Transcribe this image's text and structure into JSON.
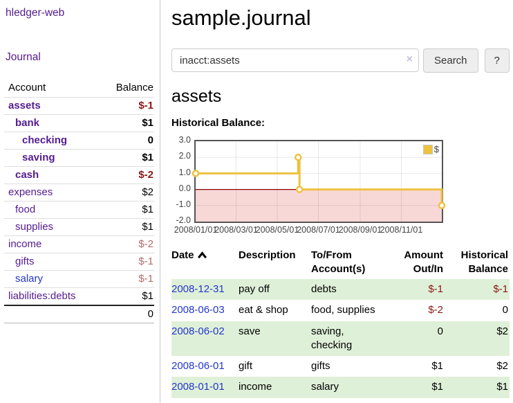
{
  "colors": {
    "link_purple": "#541b8f",
    "link_blue": "#2336cc",
    "negative_strong": "#8b1616",
    "negative_soft": "#b36b6b",
    "row_shade_green": "#dff0d8",
    "accent_yellow": "#edc240"
  },
  "app": {
    "name": "hledger-web"
  },
  "sidebar": {
    "journal_link": "Journal",
    "accounts_table": {
      "account_header": "Account",
      "balance_header": "Balance",
      "rows": [
        {
          "name": "assets",
          "balance": "$-1",
          "indent": 1,
          "bold": true,
          "balance_class": "neg-strong",
          "link_class": ""
        },
        {
          "name": "bank",
          "balance": "$1",
          "indent": 2,
          "bold": true,
          "balance_class": "",
          "link_class": ""
        },
        {
          "name": "checking",
          "balance": "0",
          "indent": 3,
          "bold": true,
          "balance_class": "",
          "link_class": ""
        },
        {
          "name": "saving",
          "balance": "$1",
          "indent": 3,
          "bold": true,
          "balance_class": "",
          "link_class": ""
        },
        {
          "name": "cash",
          "balance": "$-2",
          "indent": 2,
          "bold": true,
          "balance_class": "neg-strong",
          "link_class": ""
        },
        {
          "name": "expenses",
          "balance": "$2",
          "indent": 1,
          "bold": false,
          "balance_class": "",
          "link_class": ""
        },
        {
          "name": "food",
          "balance": "$1",
          "indent": 2,
          "bold": false,
          "balance_class": "",
          "link_class": ""
        },
        {
          "name": "supplies",
          "balance": "$1",
          "indent": 2,
          "bold": false,
          "balance_class": "",
          "link_class": ""
        },
        {
          "name": "income",
          "balance": "$-2",
          "indent": 1,
          "bold": false,
          "balance_class": "neg-soft",
          "link_class": ""
        },
        {
          "name": "gifts",
          "balance": "$-1",
          "indent": 2,
          "bold": false,
          "balance_class": "neg-soft",
          "link_class": ""
        },
        {
          "name": "salary",
          "balance": "$-1",
          "indent": 2,
          "bold": false,
          "balance_class": "neg-soft",
          "link_class": "blue"
        },
        {
          "name": "liabilities:debts",
          "balance": "$1",
          "indent": 1,
          "bold": false,
          "balance_class": "",
          "link_class": ""
        }
      ],
      "total": "0"
    }
  },
  "main": {
    "title": "sample.journal",
    "search": {
      "value": "inacct:assets",
      "clear_icon": "×",
      "search_button": "Search",
      "help_button": "?"
    },
    "account_heading": "assets",
    "chart_title": "Historical Balance:"
  },
  "chart_data": {
    "type": "line",
    "step": true,
    "title": "Historical Balance",
    "x_range": [
      "2008-01-01",
      "2008-12-31"
    ],
    "ylim": [
      -2,
      3
    ],
    "yticks": [
      3,
      2,
      1,
      0,
      -1,
      -2
    ],
    "xticks": [
      "2008/01/01",
      "2008/03/01",
      "2008/05/01",
      "2008/07/01",
      "2008/09/01",
      "2008/11/01"
    ],
    "grid": true,
    "legend": {
      "label": "$",
      "position": "top-right"
    },
    "series": [
      {
        "name": "$",
        "color": "#edc240",
        "points": [
          [
            "2008-01-01",
            1
          ],
          [
            "2008-06-01",
            2
          ],
          [
            "2008-06-03",
            0
          ],
          [
            "2008-12-31",
            -1
          ]
        ]
      }
    ],
    "colors": {
      "negative_fill": "#f8d7d7",
      "zero_line": "#8b0000",
      "grid": "rgba(0,0,0,0.09)",
      "border": "#545454"
    }
  },
  "register": {
    "headers": {
      "date": "Date",
      "description": "Description",
      "accounts": "To/From Account(s)",
      "amount": "Amount Out/In",
      "balance": "Historical Balance"
    },
    "sort": {
      "column": "date",
      "direction": "ascending"
    },
    "rows": [
      {
        "date": "2008-12-31",
        "description": "pay off",
        "accounts": "debts",
        "amount": "$-1",
        "amount_class": "neg",
        "balance": "$-1",
        "balance_class": "neg",
        "shaded": true
      },
      {
        "date": "2008-06-03",
        "description": "eat & shop",
        "accounts": "food, supplies",
        "amount": "$-2",
        "amount_class": "neg",
        "balance": "0",
        "balance_class": "",
        "shaded": false
      },
      {
        "date": "2008-06-02",
        "description": "save",
        "accounts": "saving, checking",
        "amount": "0",
        "amount_class": "",
        "balance": "$2",
        "balance_class": "",
        "shaded": true
      },
      {
        "date": "2008-06-01",
        "description": "gift",
        "accounts": "gifts",
        "amount": "$1",
        "amount_class": "",
        "balance": "$2",
        "balance_class": "",
        "shaded": false
      },
      {
        "date": "2008-01-01",
        "description": "income",
        "accounts": "salary",
        "amount": "$1",
        "amount_class": "",
        "balance": "$1",
        "balance_class": "",
        "shaded": true
      }
    ]
  }
}
